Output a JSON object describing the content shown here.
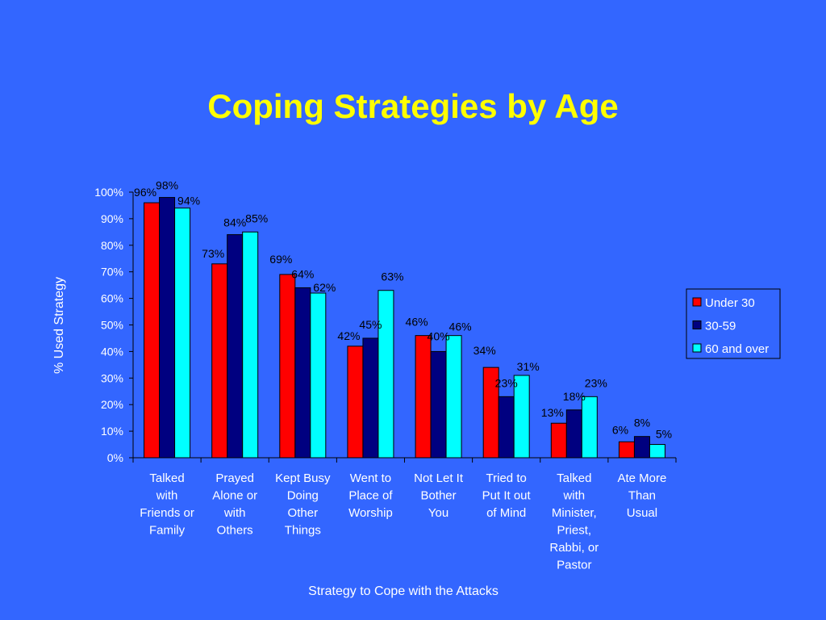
{
  "slide": {
    "title": "Coping Strategies by Age"
  },
  "chart_data": {
    "type": "bar",
    "title": "Coping Strategies by Age",
    "xlabel": "Strategy to Cope with the Attacks",
    "ylabel": "% Used Strategy",
    "ylim": [
      0,
      100
    ],
    "yticks": [
      "0%",
      "10%",
      "20%",
      "30%",
      "40%",
      "50%",
      "60%",
      "70%",
      "80%",
      "90%",
      "100%"
    ],
    "grid": false,
    "legend_position": "right",
    "categories": [
      [
        "Talked",
        "with",
        "Friends or",
        "Family"
      ],
      [
        "Prayed",
        "Alone or",
        "with",
        "Others"
      ],
      [
        "Kept Busy",
        "Doing",
        "Other",
        "Things"
      ],
      [
        "Went to",
        "Place of",
        "Worship"
      ],
      [
        "Not Let It",
        "Bother",
        "You"
      ],
      [
        "Tried to",
        "Put It out",
        "of Mind"
      ],
      [
        "Talked",
        "with",
        "Minister,",
        "Priest,",
        "Rabbi, or",
        "Pastor"
      ],
      [
        "Ate More",
        "Than",
        "Usual"
      ]
    ],
    "series": [
      {
        "name": "Under 30",
        "color": "#ff0000",
        "values": [
          96,
          73,
          69,
          42,
          46,
          34,
          13,
          6
        ]
      },
      {
        "name": "30-59",
        "color": "#000080",
        "values": [
          98,
          84,
          64,
          45,
          40,
          23,
          18,
          8
        ]
      },
      {
        "name": "60 and over",
        "color": "#00ffff",
        "values": [
          94,
          85,
          62,
          63,
          46,
          31,
          23,
          5
        ]
      }
    ],
    "label_suffix": "%"
  }
}
